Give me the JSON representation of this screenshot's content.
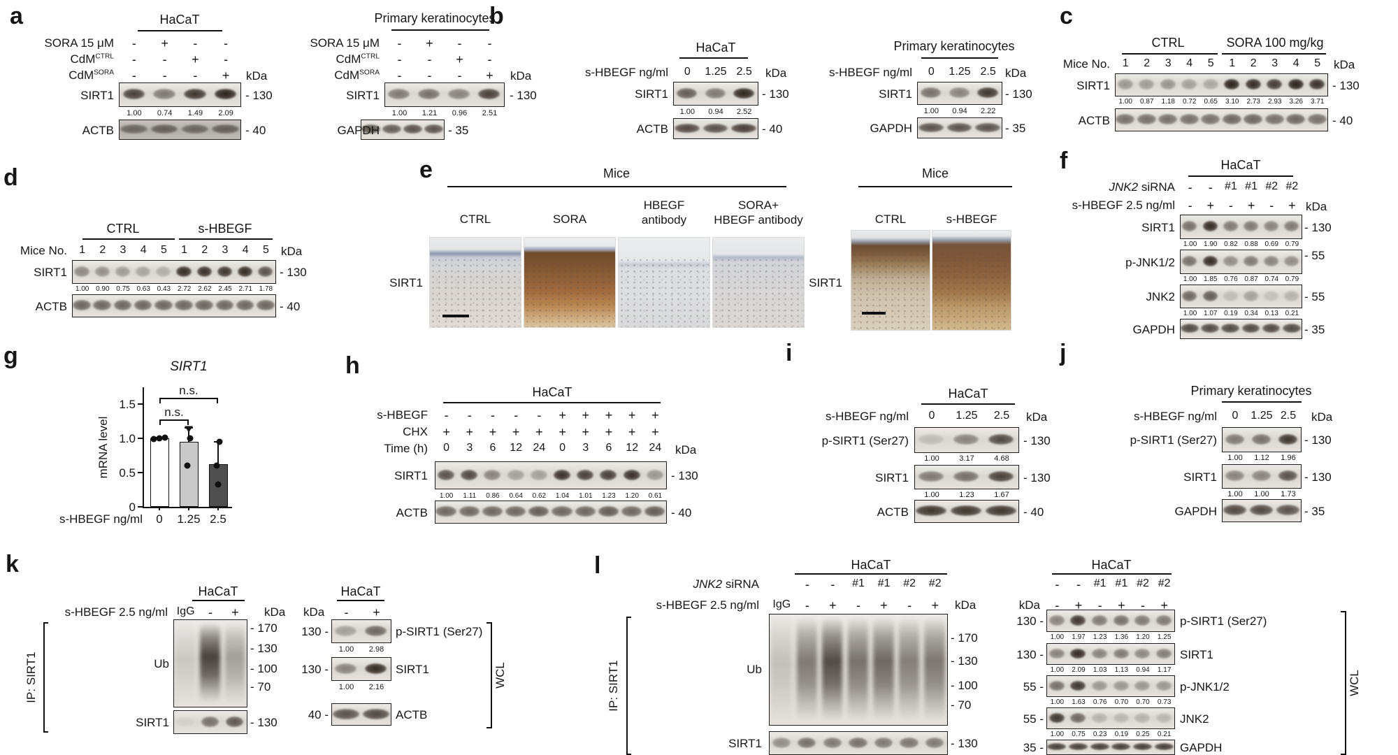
{
  "kda_label": "kDa",
  "panels": {
    "a": {
      "label": "a",
      "groups": [
        {
          "cell_line": "HaCaT",
          "conditions": [
            {
              "label": "SORA 15 μM",
              "symbols": [
                "-",
                "+",
                "-",
                "-"
              ]
            },
            {
              "label": "CdM",
              "sup": "CTRL",
              "symbols": [
                "-",
                "-",
                "+",
                "-"
              ]
            },
            {
              "label": "CdM",
              "sup": "SORA",
              "symbols": [
                "-",
                "-",
                "-",
                "+"
              ]
            }
          ],
          "rows": [
            {
              "protein": "SIRT1",
              "marker": "130",
              "values": [
                "1.00",
                "0.74",
                "1.49",
                "2.09"
              ]
            },
            {
              "protein": "ACTB",
              "marker": "40"
            }
          ]
        },
        {
          "cell_line": "Primary keratinocytes",
          "conditions": [
            {
              "label": "SORA 15 μM",
              "symbols": [
                "-",
                "+",
                "-",
                "-"
              ]
            },
            {
              "label": "CdM",
              "sup": "CTRL",
              "symbols": [
                "-",
                "-",
                "+",
                "-"
              ]
            },
            {
              "label": "CdM",
              "sup": "SORA",
              "symbols": [
                "-",
                "-",
                "-",
                "+"
              ]
            }
          ],
          "rows": [
            {
              "protein": "SIRT1",
              "marker": "130",
              "values": [
                "1.00",
                "1.21",
                "0.96",
                "2.51"
              ]
            },
            {
              "protein": "GAPDH",
              "marker": "35"
            }
          ]
        }
      ]
    },
    "b": {
      "label": "b",
      "groups": [
        {
          "cell_line": "HaCaT",
          "conditions": [
            {
              "label": "s-HBEGF ng/ml",
              "symbols": [
                "0",
                "1.25",
                "2.5"
              ]
            }
          ],
          "rows": [
            {
              "protein": "SIRT1",
              "marker": "130",
              "values": [
                "1.00",
                "0.94",
                "2.52"
              ]
            },
            {
              "protein": "ACTB",
              "marker": "40"
            }
          ]
        },
        {
          "cell_line": "Primary keratinocytes",
          "conditions": [
            {
              "label": "s-HBEGF ng/ml",
              "symbols": [
                "0",
                "1.25",
                "2.5"
              ]
            }
          ],
          "rows": [
            {
              "protein": "SIRT1",
              "marker": "130",
              "values": [
                "1.00",
                "0.94",
                "2.22"
              ]
            },
            {
              "protein": "GAPDH",
              "marker": "35"
            }
          ]
        }
      ]
    },
    "c": {
      "label": "c",
      "groups": [
        {
          "headers": [
            {
              "text": "CTRL"
            },
            {
              "text": "SORA 100 mg/kg"
            }
          ],
          "conditions": [
            {
              "label": "Mice No.",
              "symbols": [
                "1",
                "2",
                "3",
                "4",
                "5",
                "1",
                "2",
                "3",
                "4",
                "5"
              ]
            }
          ],
          "rows": [
            {
              "protein": "SIRT1",
              "marker": "130",
              "values": [
                "1.00",
                "0.87",
                "1.18",
                "0.72",
                "0.65",
                "3.10",
                "2.73",
                "2.93",
                "3.26",
                "3.71"
              ]
            },
            {
              "protein": "ACTB",
              "marker": "40"
            }
          ]
        }
      ]
    },
    "d": {
      "label": "d",
      "groups": [
        {
          "headers": [
            {
              "text": "CTRL"
            },
            {
              "text": "s-HBEGF"
            }
          ],
          "conditions": [
            {
              "label": "Mice No.",
              "symbols": [
                "1",
                "2",
                "3",
                "4",
                "5",
                "1",
                "2",
                "3",
                "4",
                "5"
              ]
            }
          ],
          "rows": [
            {
              "protein": "SIRT1",
              "marker": "130",
              "values": [
                "1.00",
                "0.90",
                "0.75",
                "0.63",
                "0.43",
                "2.72",
                "2.62",
                "2.45",
                "2.71",
                "1.78"
              ]
            },
            {
              "protein": "ACTB",
              "marker": "40"
            }
          ]
        }
      ]
    },
    "e": {
      "label": "e",
      "groups": [
        {
          "header": "Mice",
          "stain": "SIRT1",
          "columns": [
            [
              "CTRL"
            ],
            [
              "SORA"
            ],
            [
              "HBEGF",
              "antibody"
            ],
            [
              "SORA+",
              "HBEGF antibody"
            ]
          ]
        },
        {
          "header": "Mice",
          "stain": "SIRT1",
          "columns": [
            [
              "CTRL"
            ],
            [
              "s-HBEGF"
            ]
          ]
        }
      ]
    },
    "f": {
      "label": "f",
      "groups": [
        {
          "cell_line": "HaCaT",
          "conditions": [
            {
              "label": "JNK2 siRNA",
              "italic_prefix": "JNK2",
              "symbols": [
                "-",
                "-",
                "#1",
                "#1",
                "#2",
                "#2"
              ]
            },
            {
              "label": "s-HBEGF 2.5 ng/ml",
              "symbols": [
                "-",
                "+",
                "-",
                "+",
                "-",
                "+"
              ]
            }
          ],
          "rows": [
            {
              "protein": "SIRT1",
              "marker": "130",
              "values": [
                "1.00",
                "1.90",
                "0.82",
                "0.88",
                "0.69",
                "0.79"
              ]
            },
            {
              "protein": "p-JNK1/2",
              "marker": "55",
              "values": [
                "1.00",
                "1.85",
                "0.76",
                "0.87",
                "0.74",
                "0.79"
              ]
            },
            {
              "protein": "JNK2",
              "marker": "55",
              "values": [
                "1.00",
                "1.07",
                "0.19",
                "0.34",
                "0.13",
                "0.21"
              ]
            },
            {
              "protein": "GAPDH",
              "marker": "35"
            }
          ]
        }
      ]
    },
    "g": {
      "label": "g",
      "chart_data": {
        "type": "bar",
        "title": "SIRT1",
        "ylabel": "mRNA level",
        "xlabel": "s-HBEGF ng/ml",
        "categories": [
          "0",
          "1.25",
          "2.5"
        ],
        "values": [
          1.0,
          0.95,
          0.62
        ],
        "ylim": [
          0,
          1.5
        ],
        "yticks": [
          "0",
          "0.5",
          "1.0",
          "1.5"
        ],
        "ytick_values": [
          0,
          0.5,
          1.0,
          1.5
        ],
        "bar_colors": [
          "#ffffff",
          "#c9c9c9",
          "#4f4f4f"
        ],
        "error_top": [
          1.02,
          1.16,
          0.96
        ],
        "dots": [
          [
            0.99,
            1.0,
            1.01
          ],
          [
            0.6,
            1.0
          ],
          [
            0.33,
            0.6,
            0.95
          ]
        ],
        "triangles": [
          [],
          [
            1.13
          ],
          []
        ],
        "annotations": [
          {
            "text": "n.s.",
            "from": 0,
            "to": 1
          },
          {
            "text": "n.s.",
            "from": 0,
            "to": 2
          }
        ]
      }
    },
    "h": {
      "label": "h",
      "groups": [
        {
          "cell_line": "HaCaT",
          "conditions": [
            {
              "label": "s-HBEGF",
              "symbols": [
                "-",
                "-",
                "-",
                "-",
                "-",
                "+",
                "+",
                "+",
                "+",
                "+"
              ]
            },
            {
              "label": "CHX",
              "symbols": [
                "+",
                "+",
                "+",
                "+",
                "+",
                "+",
                "+",
                "+",
                "+",
                "+"
              ]
            },
            {
              "label": "Time (h)",
              "symbols": [
                "0",
                "3",
                "6",
                "12",
                "24",
                "0",
                "3",
                "6",
                "12",
                "24"
              ]
            }
          ],
          "rows": [
            {
              "protein": "SIRT1",
              "marker": "130",
              "values": [
                "1.00",
                "1.11",
                "0.86",
                "0.64",
                "0.62",
                "1.04",
                "1.01",
                "1.23",
                "1.20",
                "0.61"
              ]
            },
            {
              "protein": "ACTB",
              "marker": "40"
            }
          ]
        }
      ]
    },
    "i": {
      "label": "i",
      "groups": [
        {
          "cell_line": "HaCaT",
          "conditions": [
            {
              "label": "s-HBEGF ng/ml",
              "symbols": [
                "0",
                "1.25",
                "2.5"
              ]
            }
          ],
          "rows": [
            {
              "protein": "p-SIRT1 (Ser27)",
              "marker": "130",
              "values": [
                "1.00",
                "3.17",
                "4.68"
              ]
            },
            {
              "protein": "SIRT1",
              "marker": "130",
              "values": [
                "1.00",
                "1.23",
                "1.67"
              ]
            },
            {
              "protein": "ACTB",
              "marker": "40"
            }
          ]
        }
      ]
    },
    "j": {
      "label": "j",
      "groups": [
        {
          "cell_line": "Primary keratinocytes",
          "conditions": [
            {
              "label": "s-HBEGF ng/ml",
              "symbols": [
                "0",
                "1.25",
                "2.5"
              ]
            }
          ],
          "rows": [
            {
              "protein": "p-SIRT1 (Ser27)",
              "marker": "130",
              "values": [
                "1.00",
                "1.12",
                "1.96"
              ]
            },
            {
              "protein": "SIRT1",
              "marker": "130",
              "values": [
                "1.00",
                "1.00",
                "1.73"
              ]
            },
            {
              "protein": "GAPDH",
              "marker": "35"
            }
          ]
        }
      ]
    },
    "k": {
      "label": "k",
      "ip": {
        "cell_line": "HaCaT",
        "condition_label": "s-HBEGF 2.5 ng/ml",
        "symbols": [
          "IgG",
          "-",
          "+"
        ],
        "side_label": "IP: SIRT1",
        "blot_label": "Ub",
        "markers": [
          "170",
          "130",
          "100",
          "70"
        ],
        "bottom": {
          "protein": "SIRT1",
          "marker": "130"
        }
      },
      "wcl": {
        "cell_line": "HaCaT",
        "symbols": [
          "-",
          "+"
        ],
        "side_label": "WCL",
        "rows": [
          {
            "protein": "p-SIRT1 (Ser27)",
            "marker": "130",
            "values": [
              "1.00",
              "2.98"
            ]
          },
          {
            "protein": "SIRT1",
            "marker": "130",
            "values": [
              "1.00",
              "2.16"
            ]
          },
          {
            "protein": "ACTB",
            "marker": "40"
          }
        ]
      }
    },
    "l": {
      "label": "l",
      "ip": {
        "cell_line": "HaCaT",
        "conditions": [
          {
            "label": "JNK2 siRNA",
            "italic_prefix": "JNK2",
            "symbols": [
              "",
              "-",
              "-",
              "#1",
              "#1",
              "#2",
              "#2"
            ]
          },
          {
            "label": "s-HBEGF 2.5 ng/ml",
            "symbols": [
              "IgG",
              "-",
              "+",
              "-",
              "+",
              "-",
              "+"
            ]
          }
        ],
        "side_label": "IP: SIRT1",
        "blot_label": "Ub",
        "markers": [
          "170",
          "130",
          "100",
          "70"
        ],
        "bottom": {
          "protein": "SIRT1",
          "marker": "130"
        }
      },
      "wcl": {
        "cell_line": "HaCaT",
        "conditions": [
          {
            "symbols": [
              "-",
              "-",
              "#1",
              "#1",
              "#2",
              "#2"
            ]
          },
          {
            "symbols": [
              "-",
              "+",
              "-",
              "+",
              "-",
              "+"
            ]
          }
        ],
        "side_label": "WCL",
        "rows": [
          {
            "protein": "p-SIRT1 (Ser27)",
            "marker": "130",
            "values": [
              "1.00",
              "1.97",
              "1.23",
              "1.36",
              "1.20",
              "1.25"
            ]
          },
          {
            "protein": "SIRT1",
            "marker": "130",
            "values": [
              "1.00",
              "2.09",
              "1.03",
              "1.13",
              "0.94",
              "1.17"
            ]
          },
          {
            "protein": "p-JNK1/2",
            "marker": "55",
            "values": [
              "1.00",
              "1.63",
              "0.76",
              "0.70",
              "0.70",
              "0.73"
            ]
          },
          {
            "protein": "JNK2",
            "marker": "55",
            "values": [
              "1.00",
              "0.75",
              "0.23",
              "0.19",
              "0.25",
              "0.21"
            ]
          },
          {
            "protein": "GAPDH",
            "marker": "35"
          }
        ]
      }
    }
  }
}
